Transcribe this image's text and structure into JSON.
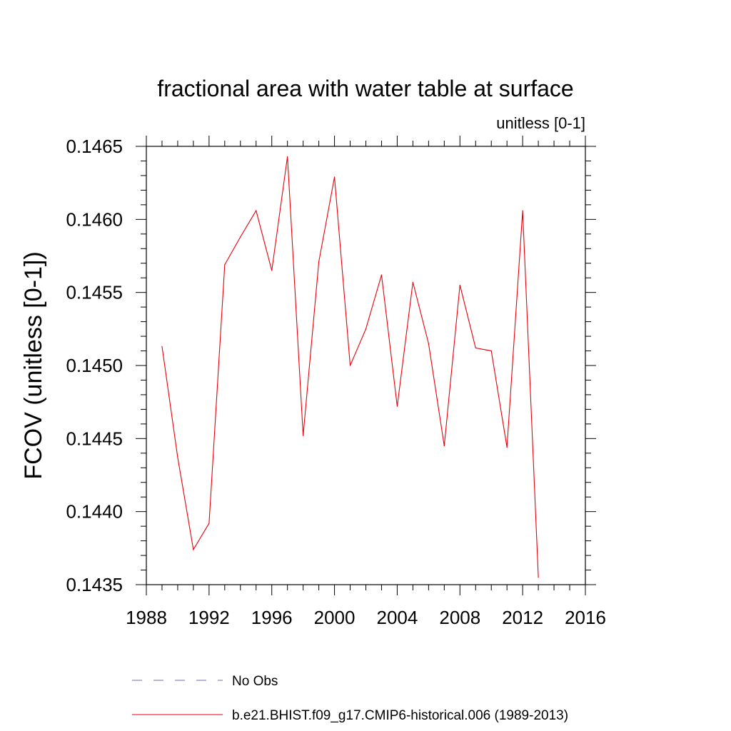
{
  "chart_data": {
    "type": "line",
    "title": "fractional area with water table at surface",
    "subtitle": "unitless [0-1]",
    "ylabel": "FCOV  (unitless [0-1])",
    "xlabel": "",
    "xlim": [
      1988,
      2016
    ],
    "ylim": [
      0.1435,
      0.1465
    ],
    "xticks": [
      "1988",
      "1992",
      "1996",
      "2000",
      "2004",
      "2008",
      "2012",
      "2016"
    ],
    "yticks": [
      "0.1435",
      "0.1440",
      "0.1445",
      "0.1450",
      "0.1455",
      "0.1460",
      "0.1465"
    ],
    "series": [
      {
        "name": "b.e21.BHIST.f09_g17.CMIP6-historical.006 (1989-2013)",
        "color": "#e8000b",
        "x": [
          1989,
          1990,
          1991,
          1992,
          1993,
          1994,
          1995,
          1996,
          1997,
          1998,
          1999,
          2000,
          2001,
          2002,
          2003,
          2004,
          2005,
          2006,
          2007,
          2008,
          2009,
          2010,
          2011,
          2012,
          2013
        ],
        "values": [
          0.14513,
          0.14437,
          0.14374,
          0.14392,
          0.14569,
          0.14588,
          0.14606,
          0.14565,
          0.14643,
          0.14452,
          0.14571,
          0.14629,
          0.145,
          0.14525,
          0.14562,
          0.14472,
          0.14557,
          0.14515,
          0.14445,
          0.14555,
          0.14512,
          0.1451,
          0.14444,
          0.14606,
          0.14355
        ]
      }
    ],
    "legend": [
      {
        "label": "No Obs",
        "style": "dashed",
        "color": "#6a6ab8"
      },
      {
        "label": "b.e21.BHIST.f09_g17.CMIP6-historical.006 (1989-2013)",
        "style": "solid",
        "color": "#e8000b"
      }
    ]
  }
}
